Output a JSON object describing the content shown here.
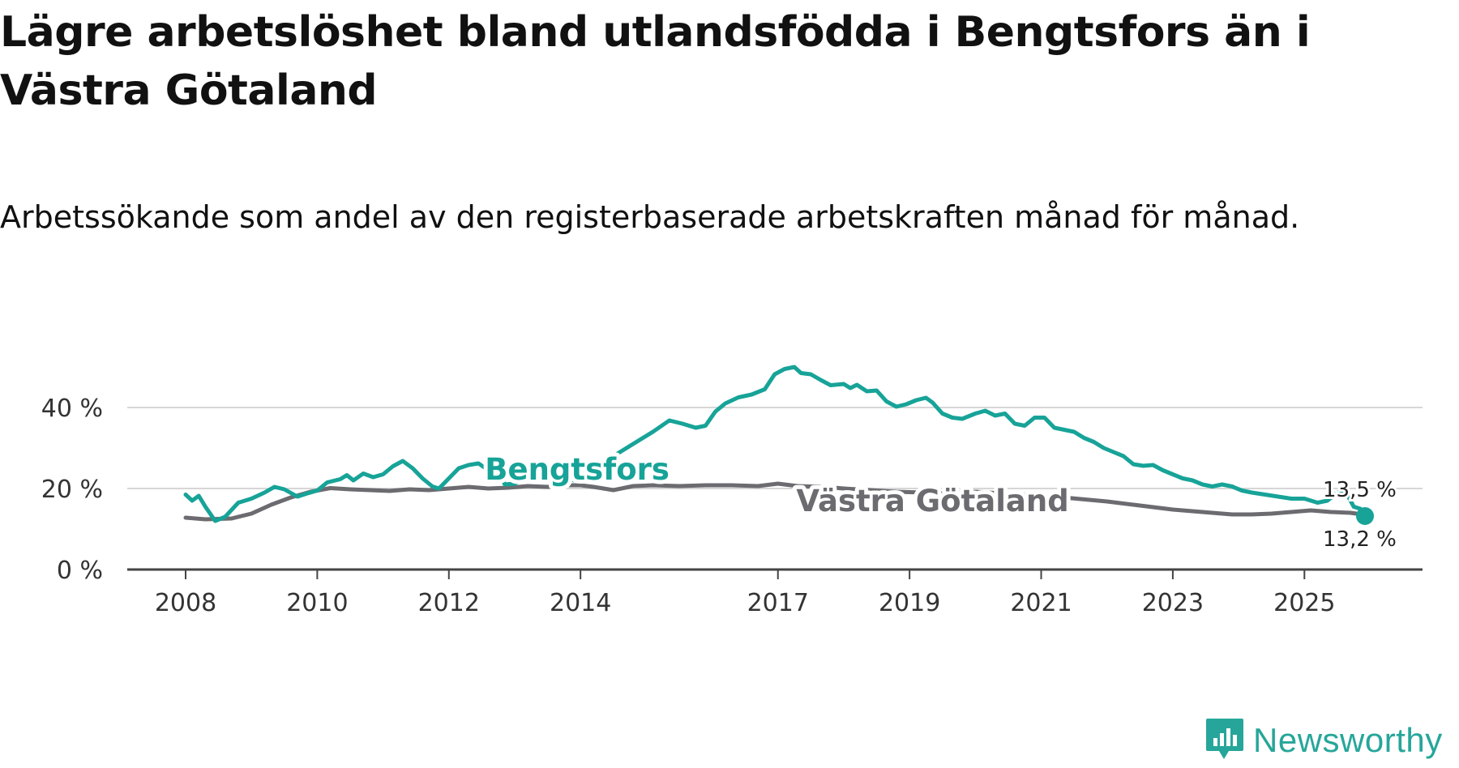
{
  "header": {
    "title": "Lägre arbetslöshet bland utlandsfödda i Bengtsfors än i Västra Götaland",
    "subtitle": "Arbetssökande som andel av den registerbaserade arbetskraften månad för månad."
  },
  "branding": {
    "name": "Newsworthy",
    "icon": "newsworthy-logo-icon",
    "color": "#26a69a"
  },
  "chart_data": {
    "type": "line",
    "title": "Lägre arbetslöshet bland utlandsfödda i Bengtsfors än i Västra Götaland",
    "subtitle": "Arbetssökande som andel av den registerbaserade arbetskraften månad för månad.",
    "xlabel": "",
    "ylabel": "",
    "x_range": [
      2008,
      2025.92
    ],
    "ylim": [
      0,
      50
    ],
    "y_ticks": [
      0,
      20,
      40
    ],
    "y_tick_labels": [
      "0 %",
      "20 %",
      "40 %"
    ],
    "x_ticks": [
      2008,
      2010,
      2012,
      2014,
      2017,
      2019,
      2021,
      2023,
      2025
    ],
    "x_tick_labels": [
      "2008",
      "2010",
      "2012",
      "2014",
      "2017",
      "2019",
      "2021",
      "2023",
      "2025"
    ],
    "grid": true,
    "series": [
      {
        "name": "Västra Götaland",
        "color": "#6b6b70",
        "end_label": "13,5 %",
        "points": [
          [
            2008.0,
            12.8
          ],
          [
            2008.3,
            12.4
          ],
          [
            2008.7,
            12.6
          ],
          [
            2009.0,
            13.8
          ],
          [
            2009.3,
            16.0
          ],
          [
            2009.6,
            17.8
          ],
          [
            2009.9,
            19.2
          ],
          [
            2010.2,
            20.1
          ],
          [
            2010.5,
            19.8
          ],
          [
            2010.8,
            19.6
          ],
          [
            2011.1,
            19.4
          ],
          [
            2011.4,
            19.8
          ],
          [
            2011.7,
            19.6
          ],
          [
            2012.0,
            20.0
          ],
          [
            2012.3,
            20.4
          ],
          [
            2012.6,
            20.0
          ],
          [
            2012.9,
            20.2
          ],
          [
            2013.2,
            20.6
          ],
          [
            2013.5,
            20.4
          ],
          [
            2013.8,
            20.8
          ],
          [
            2014.0,
            20.8
          ],
          [
            2014.2,
            20.4
          ],
          [
            2014.5,
            19.6
          ],
          [
            2014.8,
            20.6
          ],
          [
            2015.1,
            20.8
          ],
          [
            2015.5,
            20.6
          ],
          [
            2015.9,
            20.8
          ],
          [
            2016.3,
            20.8
          ],
          [
            2016.7,
            20.6
          ],
          [
            2017.0,
            21.2
          ],
          [
            2017.3,
            20.6
          ],
          [
            2017.7,
            20.4
          ],
          [
            2018.0,
            20.0
          ],
          [
            2018.4,
            19.6
          ],
          [
            2018.8,
            19.2
          ],
          [
            2019.2,
            19.0
          ],
          [
            2019.6,
            18.8
          ],
          [
            2020.0,
            19.2
          ],
          [
            2020.4,
            18.8
          ],
          [
            2020.8,
            18.4
          ],
          [
            2021.2,
            18.0
          ],
          [
            2021.6,
            17.4
          ],
          [
            2022.0,
            16.8
          ],
          [
            2022.4,
            16.0
          ],
          [
            2022.8,
            15.2
          ],
          [
            2023.0,
            14.8
          ],
          [
            2023.3,
            14.4
          ],
          [
            2023.6,
            14.0
          ],
          [
            2023.9,
            13.6
          ],
          [
            2024.2,
            13.6
          ],
          [
            2024.5,
            13.8
          ],
          [
            2024.8,
            14.2
          ],
          [
            2025.1,
            14.6
          ],
          [
            2025.4,
            14.2
          ],
          [
            2025.7,
            14.0
          ],
          [
            2025.92,
            13.5
          ]
        ]
      },
      {
        "name": "Bengtsfors",
        "color": "#17a398",
        "end_label": "13,2 %",
        "points": [
          [
            2008.0,
            18.5
          ],
          [
            2008.1,
            17.0
          ],
          [
            2008.2,
            18.2
          ],
          [
            2008.3,
            15.5
          ],
          [
            2008.45,
            12.0
          ],
          [
            2008.6,
            13.0
          ],
          [
            2008.8,
            16.5
          ],
          [
            2009.0,
            17.5
          ],
          [
            2009.2,
            19.0
          ],
          [
            2009.35,
            20.4
          ],
          [
            2009.5,
            19.8
          ],
          [
            2009.7,
            18.0
          ],
          [
            2009.85,
            18.8
          ],
          [
            2010.0,
            19.5
          ],
          [
            2010.15,
            21.5
          ],
          [
            2010.35,
            22.3
          ],
          [
            2010.45,
            23.3
          ],
          [
            2010.55,
            22.0
          ],
          [
            2010.7,
            23.7
          ],
          [
            2010.85,
            22.8
          ],
          [
            2011.0,
            23.5
          ],
          [
            2011.15,
            25.5
          ],
          [
            2011.3,
            26.8
          ],
          [
            2011.45,
            25.0
          ],
          [
            2011.6,
            22.5
          ],
          [
            2011.75,
            20.5
          ],
          [
            2011.85,
            20.0
          ],
          [
            2012.0,
            22.5
          ],
          [
            2012.15,
            25.0
          ],
          [
            2012.3,
            25.8
          ],
          [
            2012.45,
            26.2
          ],
          [
            2012.6,
            24.5
          ],
          [
            2012.75,
            24.8
          ],
          [
            2012.85,
            21.0
          ],
          [
            2013.0,
            21.2
          ],
          [
            2013.15,
            22.5
          ],
          [
            2013.3,
            23.5
          ],
          [
            2013.45,
            23.2
          ],
          [
            2013.6,
            23.5
          ],
          [
            2013.75,
            22.8
          ],
          [
            2013.9,
            22.0
          ],
          [
            2014.0,
            23.0
          ],
          [
            2014.2,
            25.5
          ],
          [
            2014.5,
            28.0
          ],
          [
            2014.8,
            31.0
          ],
          [
            2015.1,
            34.0
          ],
          [
            2015.35,
            36.8
          ],
          [
            2015.55,
            36.0
          ],
          [
            2015.75,
            35.0
          ],
          [
            2015.9,
            35.5
          ],
          [
            2016.05,
            39.0
          ],
          [
            2016.2,
            41.0
          ],
          [
            2016.4,
            42.5
          ],
          [
            2016.6,
            43.2
          ],
          [
            2016.8,
            44.5
          ],
          [
            2016.95,
            48.2
          ],
          [
            2017.1,
            49.5
          ],
          [
            2017.25,
            50.0
          ],
          [
            2017.35,
            48.5
          ],
          [
            2017.5,
            48.2
          ],
          [
            2017.65,
            46.8
          ],
          [
            2017.8,
            45.5
          ],
          [
            2018.0,
            45.8
          ],
          [
            2018.1,
            44.8
          ],
          [
            2018.2,
            45.6
          ],
          [
            2018.35,
            44.0
          ],
          [
            2018.5,
            44.2
          ],
          [
            2018.65,
            41.5
          ],
          [
            2018.8,
            40.2
          ],
          [
            2018.95,
            40.8
          ],
          [
            2019.1,
            41.8
          ],
          [
            2019.25,
            42.4
          ],
          [
            2019.35,
            41.2
          ],
          [
            2019.5,
            38.5
          ],
          [
            2019.65,
            37.5
          ],
          [
            2019.8,
            37.2
          ],
          [
            2020.0,
            38.5
          ],
          [
            2020.15,
            39.2
          ],
          [
            2020.3,
            38.0
          ],
          [
            2020.45,
            38.5
          ],
          [
            2020.6,
            36.0
          ],
          [
            2020.75,
            35.5
          ],
          [
            2020.9,
            37.5
          ],
          [
            2021.05,
            37.5
          ],
          [
            2021.2,
            35.0
          ],
          [
            2021.35,
            34.5
          ],
          [
            2021.5,
            34.0
          ],
          [
            2021.65,
            32.5
          ],
          [
            2021.8,
            31.5
          ],
          [
            2021.95,
            30.0
          ],
          [
            2022.1,
            29.0
          ],
          [
            2022.25,
            28.0
          ],
          [
            2022.4,
            26.0
          ],
          [
            2022.55,
            25.6
          ],
          [
            2022.7,
            25.8
          ],
          [
            2022.85,
            24.5
          ],
          [
            2023.0,
            23.5
          ],
          [
            2023.15,
            22.5
          ],
          [
            2023.3,
            22.0
          ],
          [
            2023.45,
            21.0
          ],
          [
            2023.6,
            20.5
          ],
          [
            2023.75,
            21.0
          ],
          [
            2023.9,
            20.5
          ],
          [
            2024.05,
            19.5
          ],
          [
            2024.2,
            19.0
          ],
          [
            2024.4,
            18.5
          ],
          [
            2024.6,
            18.0
          ],
          [
            2024.8,
            17.5
          ],
          [
            2025.0,
            17.5
          ],
          [
            2025.2,
            16.5
          ],
          [
            2025.35,
            17.0
          ],
          [
            2025.5,
            19.0
          ],
          [
            2025.65,
            18.5
          ],
          [
            2025.75,
            15.5
          ],
          [
            2025.85,
            15.0
          ],
          [
            2025.92,
            13.2
          ]
        ]
      }
    ],
    "annotations": [
      {
        "text": "Bengtsfors",
        "series": "Bengtsfors",
        "x": 2013.95,
        "y": 24.8
      },
      {
        "text": "Västra Götaland",
        "series": "Västra Götaland",
        "x": 2019.35,
        "y": 17.0
      }
    ]
  }
}
